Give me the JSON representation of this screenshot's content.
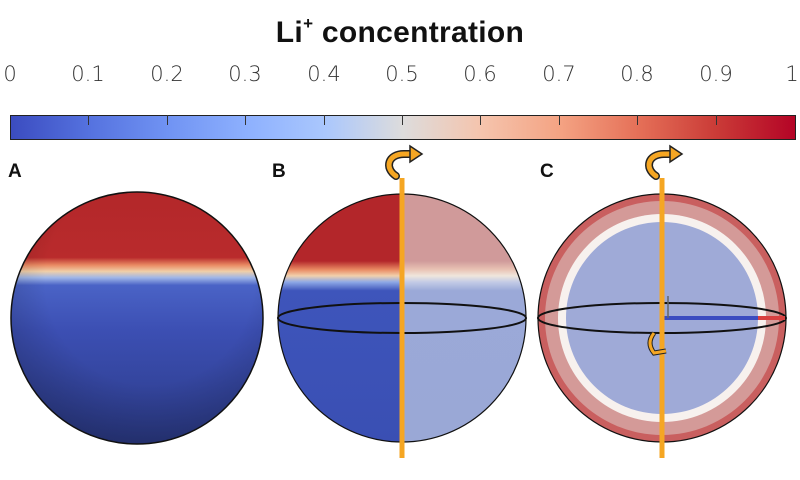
{
  "title": {
    "text": "Li",
    "superscript": "+",
    "suffix": " concentration"
  },
  "colorbar": {
    "ticks": [
      "0",
      "0.1",
      "0.2",
      "0.3",
      "0.4",
      "0.5",
      "0.6",
      "0.7",
      "0.8",
      "0.9",
      "1"
    ],
    "colormap": "coolwarm",
    "low_color": "#3b4cc0",
    "mid_color": "#dddcdc",
    "high_color": "#b40426"
  },
  "panels": [
    {
      "letter": "A"
    },
    {
      "letter": "B"
    },
    {
      "letter": "C"
    }
  ],
  "colors": {
    "sphere_blue": "#3a4fb3",
    "sphere_red": "#b82526",
    "faded_blue": "#9aa8d6",
    "faded_red": "#d09999",
    "axis_orange": "#f5a623",
    "outline": "#111111"
  },
  "icons": [
    "rotation-arrow-icon",
    "rotation-arrow-icon",
    "small-rotation-arrow-icon"
  ]
}
